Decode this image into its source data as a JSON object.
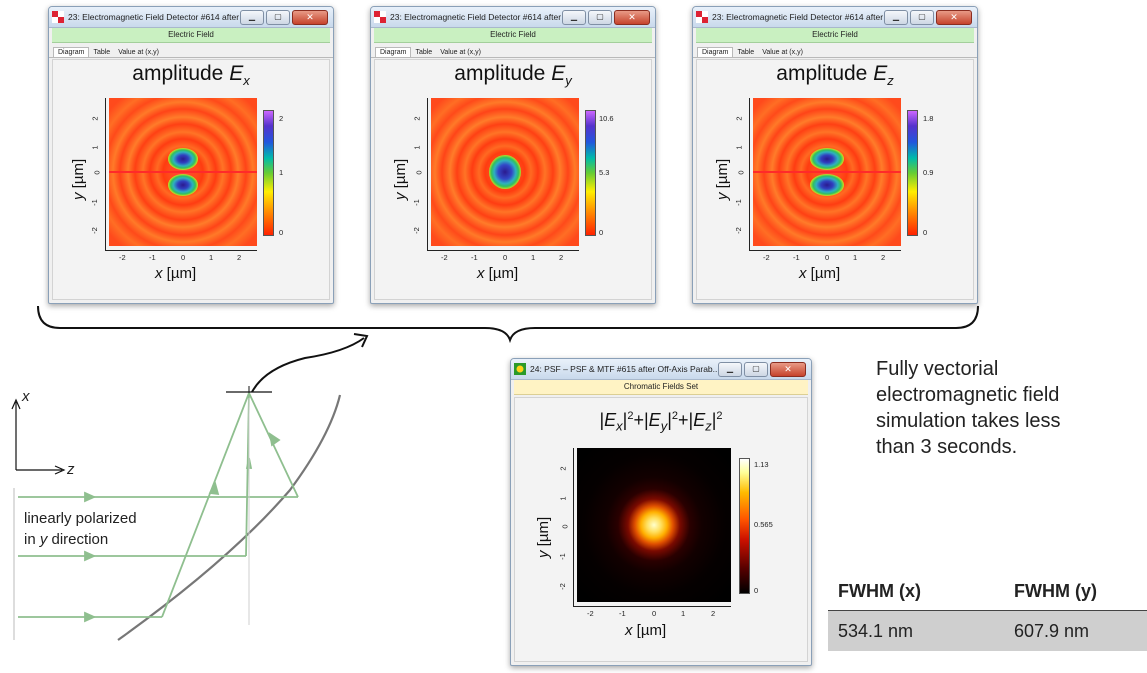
{
  "window_title_ex": "23: Electromagnetic Field Detector #614 after O...",
  "window_title_ey": "23: Electromagnetic Field Detector #614 after O...",
  "window_title_ez": "23: Electromagnetic Field Detector #614 after O...",
  "subtitle_field": "Electric Field",
  "tabs": [
    "Diagram",
    "Table",
    "Value at (x,y)"
  ],
  "plots": {
    "ex": {
      "prefix": "amplitude ",
      "symbol": "E",
      "sub": "x",
      "cb_max": "2",
      "cb_mid": "1",
      "cb_min": "0"
    },
    "ey": {
      "prefix": "amplitude ",
      "symbol": "E",
      "sub": "y",
      "cb_max": "10.6",
      "cb_mid": "5.3",
      "cb_min": "0"
    },
    "ez": {
      "prefix": "amplitude ",
      "symbol": "E",
      "sub": "z",
      "cb_max": "1.8",
      "cb_mid": "0.9",
      "cb_min": "0"
    }
  },
  "x_ticks": [
    "-2",
    "-1",
    "0",
    "1",
    "2"
  ],
  "y_ticks": [
    "2",
    "1",
    "0",
    "-1",
    "-2"
  ],
  "x_label_var": "x",
  "y_label_var": "y",
  "axis_unit": " [µm]",
  "psf_window": {
    "title": "24: PSF – PSF & MTF #615 after Off-Axis Parab...",
    "subtitle": "Chromatic Fields Set",
    "formula": {
      "a": "|",
      "ex": "E",
      "exs": "x",
      "b": "|",
      "p1": "2",
      "c": "+|",
      "ey": "E",
      "eys": "y",
      "d": "|",
      "p2": "2",
      "e": "+|",
      "ez": "E",
      "ezs": "z",
      "f": "|",
      "p3": "2"
    },
    "cb_max": "1.13",
    "cb_mid": "0.565",
    "cb_min": "0"
  },
  "description": [
    "Fully vectorial",
    "electromagnetic field",
    "simulation takes less",
    "than 3 seconds."
  ],
  "table": {
    "headers": [
      "FWHM (x)",
      "FWHM (y)"
    ],
    "values": [
      "534.1 nm",
      "607.9 nm"
    ]
  },
  "diagram": {
    "axis_x": "x",
    "axis_z": "z",
    "polarization_line1": "linearly polarized",
    "polarization_line2_pre": "in ",
    "polarization_line2_var": "y",
    "polarization_line2_post": " direction"
  },
  "colors": {
    "beam": "#8fbf8f",
    "mirror": "#7a7a7a",
    "subtitle_bg": "#c9f0c1"
  }
}
